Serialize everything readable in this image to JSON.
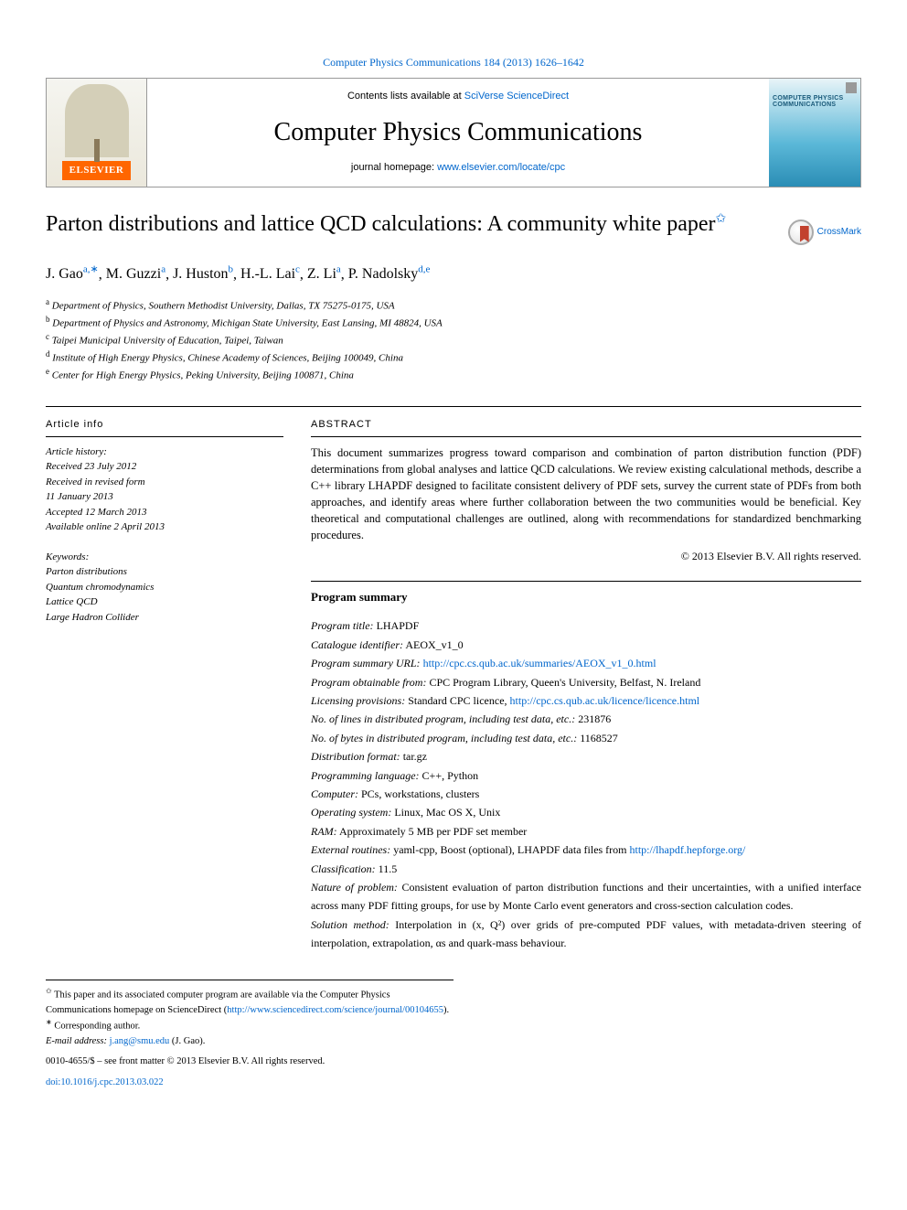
{
  "colors": {
    "link": "#0066cc",
    "elsevier_orange": "#ff6600",
    "text": "#000000",
    "background": "#ffffff",
    "cover_gradient_start": "#e8f4f8",
    "cover_gradient_end": "#2a8db5",
    "crossmark_ribbon": "#c2412e"
  },
  "typography": {
    "body_font": "Georgia, Times New Roman, serif",
    "sans_font": "Arial, sans-serif",
    "title_fontsize": 24,
    "journal_title_fontsize": 28,
    "body_fontsize": 13
  },
  "issue": {
    "text": "Computer Physics Communications 184 (2013) 1626–1642"
  },
  "header": {
    "elsevier": "ELSEVIER",
    "contents_prefix": "Contents lists available at ",
    "contents_link": "SciVerse ScienceDirect",
    "journal_title": "Computer Physics Communications",
    "homepage_prefix": "journal homepage: ",
    "homepage_link": "www.elsevier.com/locate/cpc",
    "cover_title": "COMPUTER PHYSICS COMMUNICATIONS"
  },
  "crossmark": "CrossMark",
  "title": {
    "main": "Parton distributions and lattice QCD calculations: A community white paper",
    "footnote_mark": "✩"
  },
  "authors": [
    {
      "name": "J. Gao",
      "sup": "a,∗"
    },
    {
      "name": "M. Guzzi",
      "sup": "a"
    },
    {
      "name": "J. Huston",
      "sup": "b"
    },
    {
      "name": "H.-L. Lai",
      "sup": "c"
    },
    {
      "name": "Z. Li",
      "sup": "a"
    },
    {
      "name": "P. Nadolsky",
      "sup": "d,e"
    }
  ],
  "affiliations": [
    {
      "sup": "a",
      "text": "Department of Physics, Southern Methodist University, Dallas, TX 75275-0175, USA"
    },
    {
      "sup": "b",
      "text": "Department of Physics and Astronomy, Michigan State University, East Lansing, MI 48824, USA"
    },
    {
      "sup": "c",
      "text": "Taipei Municipal University of Education, Taipei, Taiwan"
    },
    {
      "sup": "d",
      "text": "Institute of High Energy Physics, Chinese Academy of Sciences, Beijing 100049, China"
    },
    {
      "sup": "e",
      "text": "Center for High Energy Physics, Peking University, Beijing 100871, China"
    }
  ],
  "article_info": {
    "heading": "ARTICLE INFO",
    "history_heading": "Article history:",
    "history": [
      "Received 23 July 2012",
      "Received in revised form",
      "11 January 2013",
      "Accepted 12 March 2013",
      "Available online 2 April 2013"
    ],
    "keywords_heading": "Keywords:",
    "keywords": [
      "Parton distributions",
      "Quantum chromodynamics",
      "Lattice QCD",
      "Large Hadron Collider"
    ]
  },
  "abstract": {
    "heading": "ABSTRACT",
    "text": "This document summarizes progress toward comparison and combination of parton distribution function (PDF) determinations from global analyses and lattice QCD calculations. We review existing calculational methods, describe a C++ library LHAPDF designed to facilitate consistent delivery of PDF sets, survey the current state of PDFs from both approaches, and identify areas where further collaboration between the two communities would be beneficial. Key theoretical and computational challenges are outlined, along with recommendations for standardized benchmarking procedures.",
    "copyright": "© 2013 Elsevier B.V. All rights reserved."
  },
  "program_summary": {
    "heading": "Program summary",
    "lines": [
      {
        "label": "Program title:",
        "value": "LHAPDF"
      },
      {
        "label": "Catalogue identifier:",
        "value": "AEOX_v1_0"
      },
      {
        "label": "Program summary URL:",
        "value_link": "http://cpc.cs.qub.ac.uk/summaries/AEOX_v1_0.html"
      },
      {
        "label": "Program obtainable from:",
        "value": "CPC Program Library, Queen's University, Belfast, N. Ireland"
      },
      {
        "label": "Licensing provisions:",
        "value": "Standard CPC licence, ",
        "value_link": "http://cpc.cs.qub.ac.uk/licence/licence.html"
      },
      {
        "label": "No. of lines in distributed program, including test data, etc.:",
        "value": "231876"
      },
      {
        "label": "No. of bytes in distributed program, including test data, etc.:",
        "value": "1168527"
      },
      {
        "label": "Distribution format:",
        "value": "tar.gz"
      },
      {
        "label": "Programming language:",
        "value": "C++, Python"
      },
      {
        "label": "Computer:",
        "value": "PCs, workstations, clusters"
      },
      {
        "label": "Operating system:",
        "value": "Linux, Mac OS X, Unix"
      },
      {
        "label": "RAM:",
        "value": "Approximately 5 MB per PDF set member"
      },
      {
        "label": "External routines:",
        "value": "yaml-cpp, Boost (optional), LHAPDF data files from ",
        "value_link": "http://lhapdf.hepforge.org/"
      },
      {
        "label": "Classification:",
        "value": "11.5"
      },
      {
        "label": "Nature of problem:",
        "value": "Consistent evaluation of parton distribution functions and their uncertainties, with a unified interface across many PDF fitting groups, for use by Monte Carlo event generators and cross-section calculation codes."
      },
      {
        "label": "Solution method:",
        "value": "Interpolation in (x, Q²) over grids of pre-computed PDF values, with metadata-driven steering of interpolation, extrapolation, αs and quark-mass behaviour."
      }
    ]
  },
  "footnotes": {
    "f1_mark": "✩",
    "f1_text": "This paper and its associated computer program are available via the Computer Physics Communications homepage on ScienceDirect (",
    "f1_link": "http://www.sciencedirect.com/science/journal/00104655",
    "f1_after": ").",
    "f2_mark": "∗",
    "f2_text": "Corresponding author.",
    "email_label": "E-mail address:",
    "email": "j.ang@smu.edu",
    "email_author": "(J. Gao)."
  },
  "footer": {
    "copyright": "0010-4655/$ – see front matter © 2013 Elsevier B.V. All rights reserved.",
    "doi_link": "doi:10.1016/j.cpc.2013.03.022"
  }
}
